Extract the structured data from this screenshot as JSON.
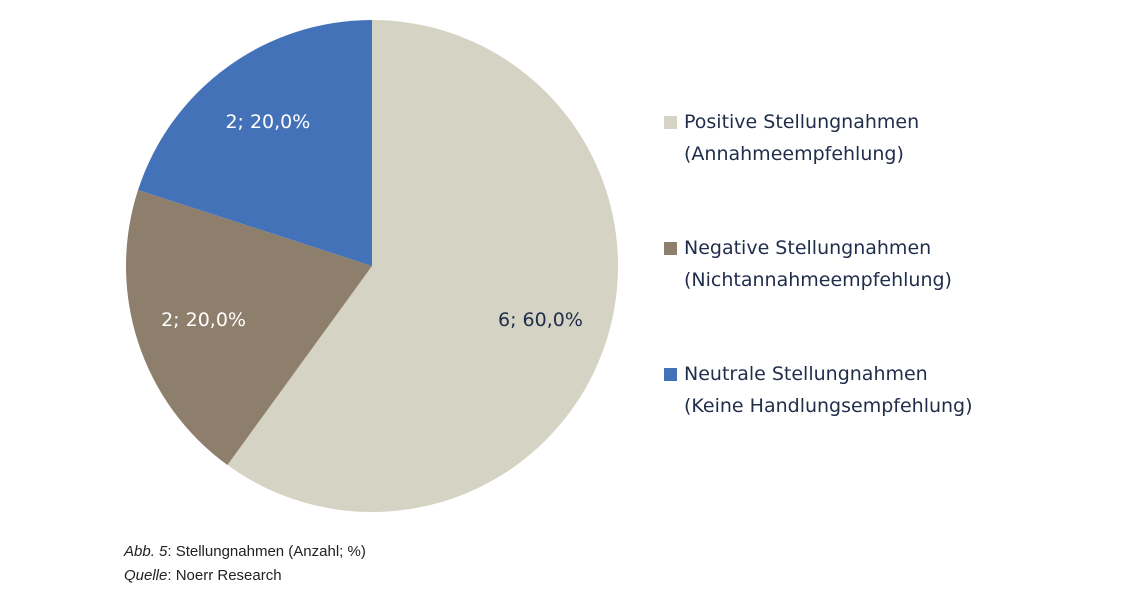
{
  "chart_data": {
    "type": "pie",
    "series": [
      {
        "name": "Positive Stellungnahmen (Annahmeempfehlung)",
        "color": "#d5d3c3",
        "values": [
          6
        ],
        "value_labels": [
          "6; 60,0%"
        ],
        "label_color": "#1f2d4a"
      },
      {
        "name": "Negative Stellungnahmen (Nichtannahmeempfehlung)",
        "color": "#8e7f6d",
        "values": [
          2
        ],
        "value_labels": [
          "2; 20,0%"
        ],
        "label_color": "#ffffff"
      },
      {
        "name": "Neutrale Stellungnahmen (Keine Handlungsempfehlung)",
        "color": "#4472b8",
        "values": [
          2
        ],
        "value_labels": [
          "2; 20,0%"
        ],
        "label_color": "#ffffff"
      }
    ],
    "legend": "right",
    "figure_label": "Abb. 5",
    "figure_text": ": Stellungnahmen (Anzahl; %)",
    "source_label": "Quelle",
    "source_text": ": Noerr Research"
  }
}
